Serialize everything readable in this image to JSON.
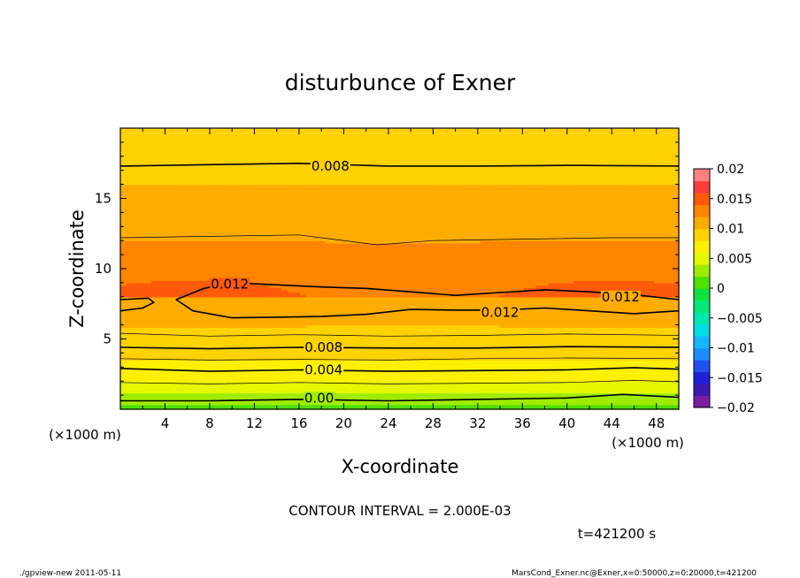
{
  "chart_data": {
    "type": "contour",
    "title": "disturbunce of Exner",
    "xlabel": "X-coordinate",
    "ylabel": "Z-coordinate",
    "x_unit": "(×1000 m)",
    "xlim": [
      0,
      50
    ],
    "ylim": [
      0,
      20
    ],
    "x_ticks": [
      4,
      8,
      12,
      16,
      20,
      24,
      28,
      32,
      36,
      40,
      44,
      48
    ],
    "y_ticks": [
      5,
      10,
      15
    ],
    "colorbar": {
      "range": [
        -0.02,
        0.02
      ],
      "tick_labels": [
        "0.02",
        "0.015",
        "0.01",
        "0.005",
        "0",
        "−0.005",
        "−0.01",
        "−0.015",
        "−0.02"
      ],
      "levels_count": 20
    },
    "contour_labels": [
      {
        "text": "0.008",
        "x": 18.8,
        "z": 17.3
      },
      {
        "text": "0.012",
        "x": 9.8,
        "z": 8.9
      },
      {
        "text": "0.012",
        "x": 44.8,
        "z": 8.0
      },
      {
        "text": "0.012",
        "x": 34.0,
        "z": 6.9
      },
      {
        "text": "0.008",
        "x": 18.2,
        "z": 4.4
      },
      {
        "text": "0.004",
        "x": 18.2,
        "z": 2.8
      },
      {
        "text": "0.00",
        "x": 17.8,
        "z": 0.8
      }
    ],
    "contour_interval_text": "CONTOUR INTERVAL = 2.000E-03",
    "time_text": "t=421200 s"
  },
  "footer": {
    "left": "./gpview-new  2011-05-11",
    "right": "MarsCond_Exner.nc@Exner,x=0:50000,z=0:20000,t=421200"
  }
}
